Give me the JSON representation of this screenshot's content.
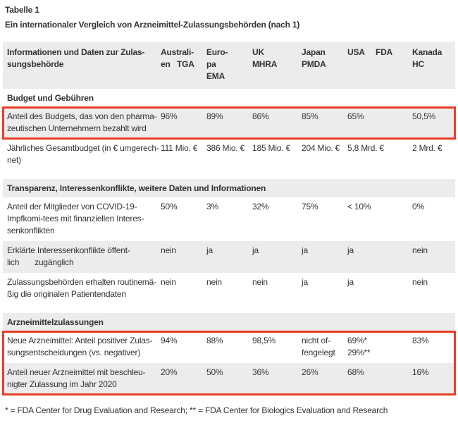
{
  "title": "Tabelle 1",
  "subtitle": "Ein internationaler Vergleich von Arzneimittel-Zulassungsbehörden (nach 1)",
  "footnote": "* = FDA Center for Drug Evaluation and Research; ** = FDA Center for Biologics Evaluation and Research",
  "colors": {
    "page_background": "#ffffff",
    "row_stripe": "#ececec",
    "text": "#333333",
    "highlight_border": "#e83e26"
  },
  "table": {
    "header": {
      "label": "Informationen und Daten zur Zulas-\nsungsbehörde",
      "columns": [
        "Australi-\nen   TGA",
        "Euro-\npa\nEMA",
        "UK\nMHRA",
        "Japan\nPMDA",
        "USA     FDA",
        "Kanada\nHC"
      ]
    },
    "rows": [
      {
        "type": "section",
        "label": "Budget und Gebühren",
        "gap": false
      },
      {
        "type": "data",
        "box": "box1",
        "label": "Anteil des Budgets, das von den pharma-\nzeutischen Unternehmern bezahlt wird",
        "values": [
          "96%",
          "89%",
          "86%",
          "85%",
          "65%",
          "50,5%"
        ]
      },
      {
        "type": "data",
        "label": "Jährliches Gesamtbudget (in € umgerech-\nnet)",
        "values": [
          "111 Mio. €",
          "386 Mio. €",
          "185 Mio. €",
          "204 Mio. €",
          "5,8 Mrd. €",
          "2 Mrd. €"
        ]
      },
      {
        "type": "section",
        "label": "Transparenz, Interessenkonflikte, weitere Daten und Informationen",
        "gap": true
      },
      {
        "type": "data",
        "label": "Anteil der Mitglieder von COVID-19-\nImpfkomi-tees mit finanziellen Interes-\nsenkonflikten",
        "values": [
          "50%",
          "3%",
          "32%",
          "75%",
          "< 10%",
          "0%"
        ]
      },
      {
        "type": "data",
        "label": "Erklärte Interessenkonflikte öffent-\nlich       zugänglich",
        "values": [
          "nein",
          "ja",
          "ja",
          "ja",
          "ja",
          "nein"
        ]
      },
      {
        "type": "data",
        "label": "Zulassungsbehörden erhalten routinemä-\nßig die originalen Patientendaten",
        "values": [
          "nein",
          "nein",
          "nein",
          "ja",
          "ja",
          "nein"
        ]
      },
      {
        "type": "section",
        "label": "Arzneimittelzulassungen",
        "gap": true
      },
      {
        "type": "data",
        "box": "box2",
        "label": "Neue Arzneimittel: Anteil positiver Zulas-\nsungsentscheidungen (vs. negativer)",
        "values": [
          "94%",
          "88%",
          "98,5%",
          "nicht of-\nfengelegt",
          "69%*\n29%**",
          "83%"
        ]
      },
      {
        "type": "data",
        "box": "box2",
        "label": "Anteil neuer Arzneimittel mit beschleu-\nnigter Zulassung im Jahr 2020",
        "values": [
          "20%",
          "50%",
          "36%",
          "26%",
          "68%",
          "16%"
        ]
      }
    ]
  }
}
